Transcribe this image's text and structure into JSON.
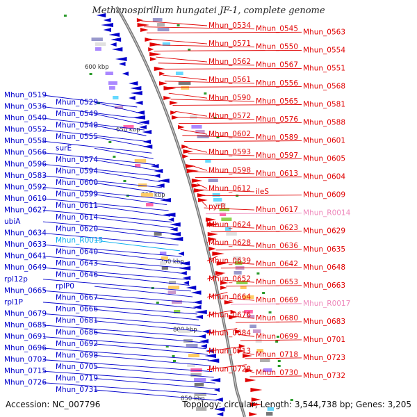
{
  "title": "Methanospirillum hungatei JF-1, complete genome",
  "footer": {
    "accession": "Accession: NC_007796",
    "summary": "Topology: circular; Length: 3,544,738 bp; Genes: 3,205"
  },
  "colors": {
    "forward": "#e00000",
    "reverse": "#0000cc",
    "rna_reverse": "#00aaee",
    "rna_forward": "#ee88bb"
  },
  "scale_marks": [
    "600 kbp",
    "650 kbp",
    "700 kbp",
    "750 kbp",
    "800 kbp",
    "850 kbp"
  ],
  "reverse_labels": [
    "Mhun_0519",
    "Mhun_0529",
    "Mhun_0536",
    "Mhun_0549",
    "Mhun_0540",
    "Mhun_0548",
    "Mhun_0552",
    "Mhun_0555",
    "Mhun_0558",
    "surE",
    "Mhun_0566",
    "Mhun_0574",
    "Mhun_0596",
    "Mhun_0594",
    "Mhun_0583",
    "Mhun_0600",
    "Mhun_0592",
    "Mhun_0599",
    "Mhun_0610",
    "Mhun_0611",
    "Mhun_0627",
    "Mhun_0614",
    "ubiA",
    "Mhun_0620",
    "Mhun_0634",
    "Mhun_R0015",
    "Mhun_0633",
    "Mhun_0640",
    "Mhun_0641",
    "Mhun_0643",
    "Mhun_0649",
    "Mhun_0646",
    "rpl12p",
    "rplP0",
    "Mhun_0665",
    "Mhun_0667",
    "rpl1P",
    "Mhun_0666",
    "Mhun_0679",
    "Mhun_0681",
    "Mhun_0685",
    "Mhun_0686",
    "Mhun_0691",
    "Mhun_0692",
    "Mhun_0696",
    "Mhun_0698",
    "Mhun_0703",
    "Mhun_0705",
    "Mhun_0715",
    "Mhun_0719",
    "Mhun_0726",
    "Mhun_0731"
  ],
  "forward_labels": [
    "Mhun_0534",
    "Mhun_0545",
    "Mhun_0563",
    "Mhun_0571",
    "Mhun_0550",
    "Mhun_0554",
    "Mhun_0562",
    "Mhun_0567",
    "Mhun_0551",
    "Mhun_0561",
    "Mhun_0556",
    "Mhun_0568",
    "Mhun_0590",
    "Mhun_0565",
    "Mhun_0581",
    "Mhun_0572",
    "Mhun_0576",
    "Mhun_0588",
    "Mhun_0602",
    "Mhun_0589",
    "Mhun_0601",
    "Mhun_0593",
    "Mhun_0597",
    "Mhun_0605",
    "Mhun_0598",
    "Mhun_0613",
    "Mhun_0604",
    "Mhun_0612",
    "ileS",
    "Mhun_0609",
    "pyrB",
    "Mhun_0617",
    "Mhun_R0014",
    "Mhun_0624",
    "Mhun_0623",
    "Mhun_0629",
    "Mhun_0628",
    "Mhun_0636",
    "Mhun_0635",
    "Mhun_0639",
    "Mhun_0642",
    "Mhun_0648",
    "Mhun_0652",
    "Mhun_0653",
    "Mhun_0663",
    "Mhun_0664",
    "Mhun_0669",
    "Mhun_R0017",
    "Mhun_0676",
    "Mhun_0680",
    "Mhun_0683",
    "Mhun_0684",
    "Mhun_0699",
    "Mhun_0701",
    "Mhun_0713",
    "Mhun_0718",
    "Mhun_0723",
    "Mhun_0728",
    "Mhun_0730",
    "Mhun_0732"
  ]
}
